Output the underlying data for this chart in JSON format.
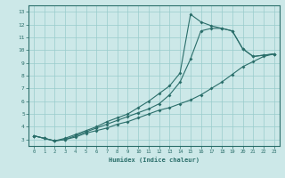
{
  "title": "",
  "xlabel": "Humidex (Indice chaleur)",
  "bg_color": "#cce8e8",
  "line_color": "#2a6e6a",
  "grid_color": "#99cccc",
  "xlim": [
    -0.5,
    23.5
  ],
  "ylim": [
    2.5,
    13.5
  ],
  "xticks": [
    0,
    1,
    2,
    3,
    4,
    5,
    6,
    7,
    8,
    9,
    10,
    11,
    12,
    13,
    14,
    15,
    16,
    17,
    18,
    19,
    20,
    21,
    22,
    23
  ],
  "yticks": [
    3,
    4,
    5,
    6,
    7,
    8,
    9,
    10,
    11,
    12,
    13
  ],
  "series1_x": [
    0,
    1,
    2,
    3,
    4,
    5,
    6,
    7,
    8,
    9,
    10,
    11,
    12,
    13,
    14,
    15,
    16,
    17,
    18,
    19,
    20,
    21,
    22,
    23
  ],
  "series1_y": [
    3.3,
    3.1,
    2.9,
    3.0,
    3.2,
    3.5,
    3.7,
    3.9,
    4.2,
    4.4,
    4.7,
    5.0,
    5.3,
    5.5,
    5.8,
    6.1,
    6.5,
    7.0,
    7.5,
    8.1,
    8.7,
    9.1,
    9.5,
    9.7
  ],
  "series2_x": [
    0,
    1,
    2,
    3,
    4,
    5,
    6,
    7,
    8,
    9,
    10,
    11,
    12,
    13,
    14,
    15,
    16,
    17,
    18,
    19,
    20,
    21,
    22,
    23
  ],
  "series2_y": [
    3.3,
    3.1,
    2.9,
    3.0,
    3.3,
    3.6,
    3.9,
    4.2,
    4.5,
    4.8,
    5.1,
    5.4,
    5.8,
    6.5,
    7.5,
    9.3,
    11.5,
    11.7,
    11.7,
    11.5,
    10.1,
    9.5,
    9.6,
    9.7
  ],
  "series3_x": [
    0,
    1,
    2,
    3,
    4,
    5,
    6,
    7,
    8,
    9,
    10,
    11,
    12,
    13,
    14,
    15,
    16,
    17,
    18,
    19,
    20,
    21,
    22,
    23
  ],
  "series3_y": [
    3.3,
    3.1,
    2.9,
    3.1,
    3.4,
    3.7,
    4.0,
    4.4,
    4.7,
    5.0,
    5.5,
    6.0,
    6.6,
    7.2,
    8.2,
    12.8,
    12.2,
    11.9,
    11.7,
    11.5,
    10.1,
    9.5,
    9.6,
    9.7
  ]
}
